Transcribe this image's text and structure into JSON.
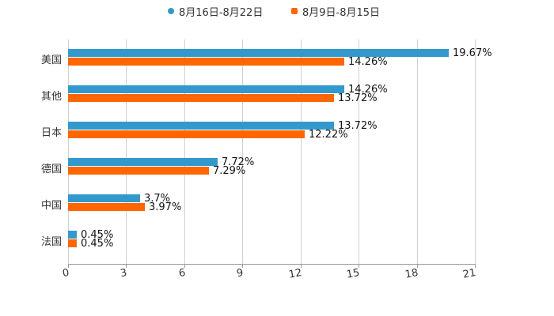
{
  "legend": [
    {
      "label": "8月16日-8月22日",
      "color": "#3399cc",
      "shape": "circle"
    },
    {
      "label": "8月9日-8月15日",
      "color": "#ff6600",
      "shape": "square"
    }
  ],
  "chart_data": {
    "type": "bar",
    "orientation": "horizontal",
    "title": "",
    "xlabel": "",
    "ylabel": "",
    "categories": [
      "美国",
      "其他",
      "日本",
      "德国",
      "中国",
      "法国"
    ],
    "series": [
      {
        "name": "8月16日-8月22日",
        "color": "#3399cc",
        "values": [
          19.67,
          14.26,
          13.72,
          7.72,
          3.7,
          0.45
        ],
        "labels": [
          "19.67%",
          "14.26%",
          "13.72%",
          "7.72%",
          "3.7%",
          "0.45%"
        ]
      },
      {
        "name": "8月9日-8月15日",
        "color": "#ff6600",
        "values": [
          14.26,
          13.72,
          12.22,
          7.29,
          3.97,
          0.45
        ],
        "labels": [
          "14.26%",
          "13.72%",
          "12.22%",
          "7.29%",
          "3.97%",
          "0.45%"
        ]
      }
    ],
    "xlim": [
      0,
      21
    ],
    "xticks": [
      "0",
      "3",
      "6",
      "9",
      "12",
      "15",
      "18",
      "21"
    ],
    "grid": {
      "vertical": true,
      "horizontal": false
    },
    "legend_position": "top"
  }
}
